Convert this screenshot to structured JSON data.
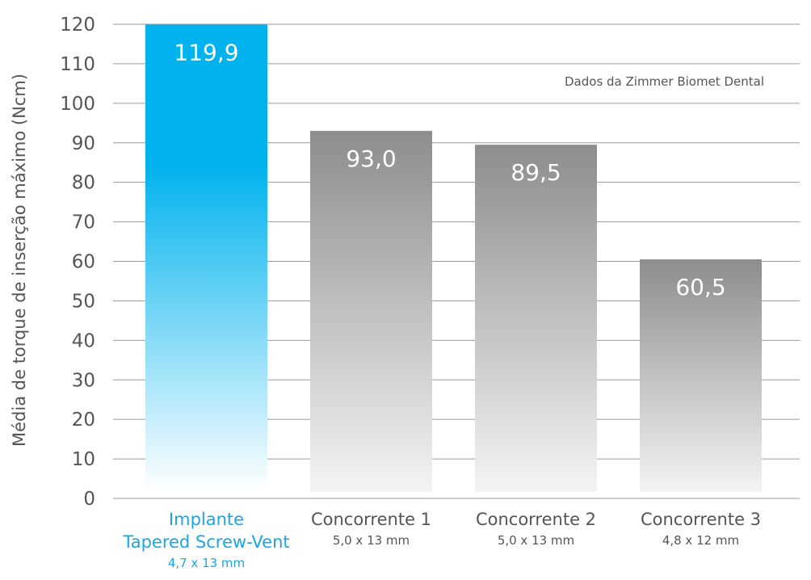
{
  "chart_data": {
    "type": "bar",
    "ylabel": "Média de torque de inserção máximo (Ncm)",
    "ylim": [
      0,
      120
    ],
    "yticks": [
      0,
      10,
      20,
      30,
      40,
      50,
      60,
      70,
      80,
      90,
      100,
      110,
      120
    ],
    "grid": true,
    "annotation": "Dados da Zimmer Biomet Dental",
    "categories": [
      {
        "name_lines": [
          "Implante",
          "Tapered Screw-Vent"
        ],
        "size": "4,7 x 13 mm",
        "value": 119.9,
        "value_label": "119,9",
        "highlight": true
      },
      {
        "name_lines": [
          "Concorrente 1"
        ],
        "size": "5,0 x 13 mm",
        "value": 93.0,
        "value_label": "93,0",
        "highlight": false
      },
      {
        "name_lines": [
          "Concorrente 2"
        ],
        "size": "5,0 x 13 mm",
        "value": 89.5,
        "value_label": "89,5",
        "highlight": false
      },
      {
        "name_lines": [
          "Concorrente 3"
        ],
        "size": "4,8 x 12 mm",
        "value": 60.5,
        "value_label": "60,5",
        "highlight": false
      }
    ],
    "colors": {
      "highlight_top": "#00b2ee",
      "highlight_bottom": "#ffffff",
      "highlight_text": "#1aa6e6",
      "other_top": "#8c8d8f",
      "other_bottom": "#f4f4f4",
      "text": "#555555",
      "grid": "#9a9a9a"
    }
  }
}
